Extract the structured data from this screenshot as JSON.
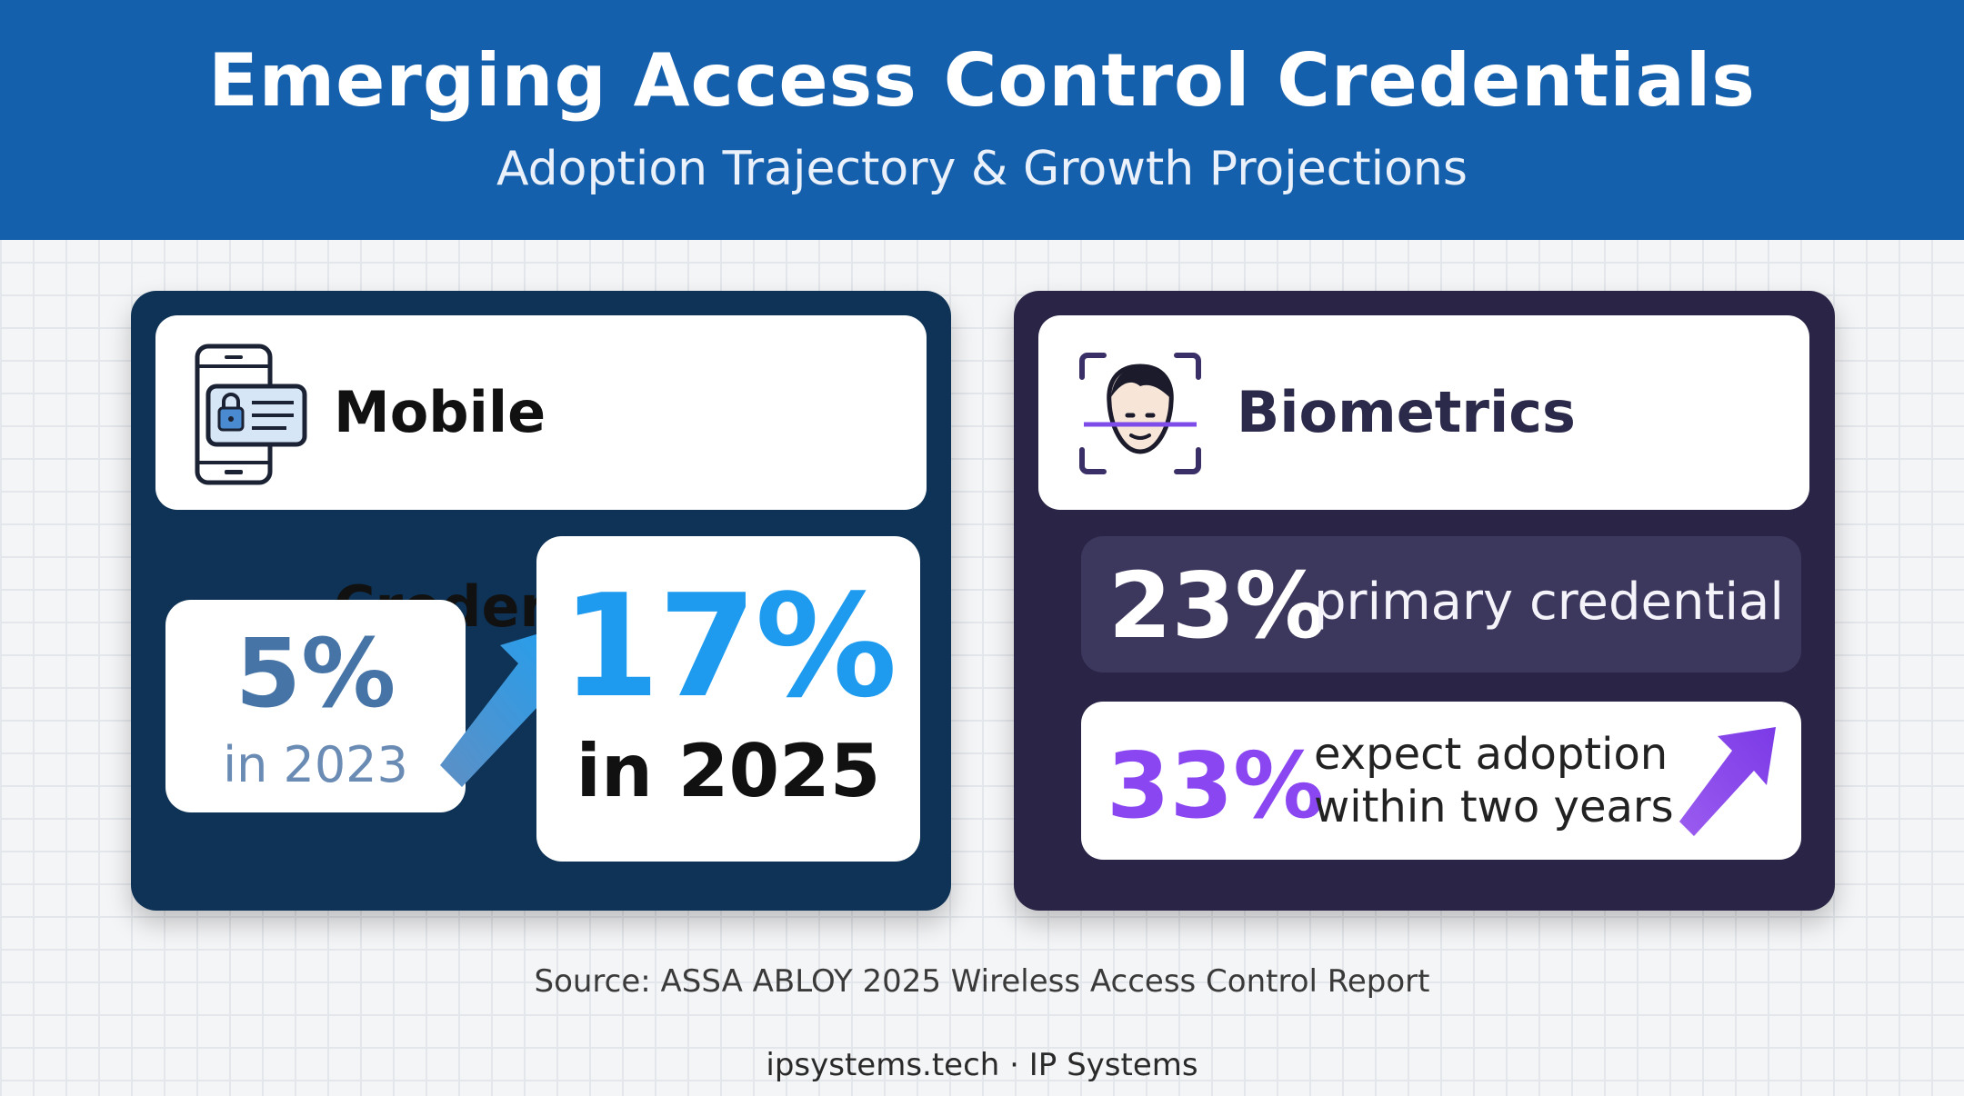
{
  "header": {
    "title": "Emerging Access Control Credentials",
    "subtitle": "Adoption Trajectory & Growth Projections"
  },
  "colors": {
    "header_blue": "#1560ad",
    "mobile_card": "#0e3356",
    "biometrics_card": "#2a2546",
    "accent_blue": "#1e9bef",
    "accent_purple": "#8a46f0"
  },
  "mobile": {
    "icon": "phone-lock-id-icon",
    "title": "Mobile Credentials",
    "from": {
      "value": "5%",
      "caption": "in 2023"
    },
    "to": {
      "value": "17%",
      "caption": "in 2025"
    },
    "trend_icon": "arrow-up-right-icon"
  },
  "biometrics": {
    "icon": "face-scan-icon",
    "title": "Biometrics",
    "primary": {
      "value": "23%",
      "caption": "primary credential"
    },
    "expect": {
      "value": "33%",
      "caption_line1": "expect adoption",
      "caption_line2": "within two years"
    },
    "trend_icon": "arrow-up-right-icon"
  },
  "footer": {
    "source": "Source: ASSA ABLOY 2025 Wireless Access Control Report",
    "credit": "ipsystems.tech · IP Systems"
  }
}
